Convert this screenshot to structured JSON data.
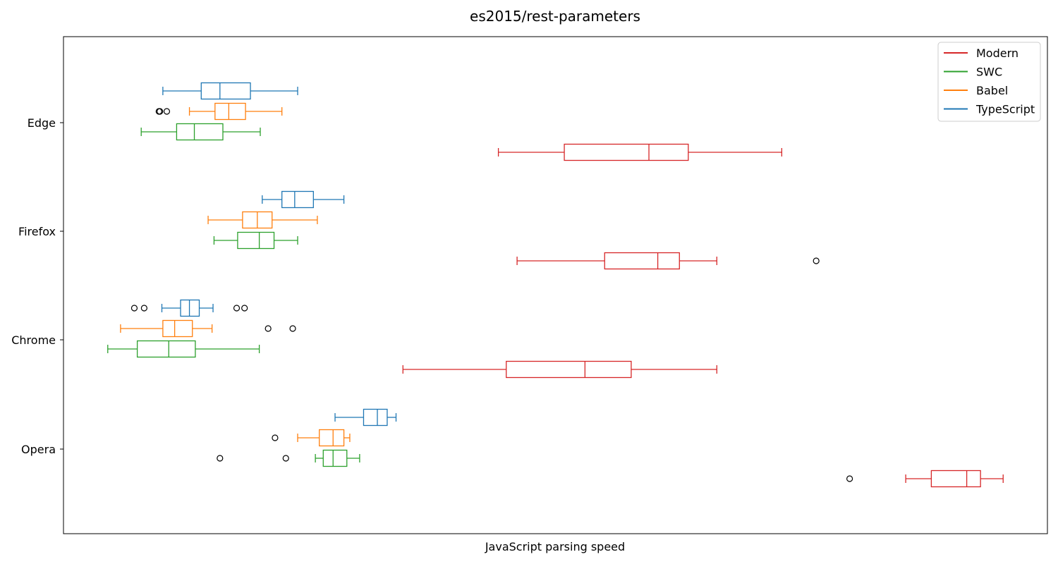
{
  "chart_data": {
    "type": "boxplot",
    "orientation": "horizontal",
    "title": "es2015/rest-parameters",
    "xlabel": "JavaScript parsing speed",
    "ylabel": "",
    "x_ticks_shown": false,
    "xlim": [
      0,
      1000
    ],
    "grid": false,
    "legend_position": "top-right",
    "categories": [
      "Edge",
      "Firefox",
      "Chrome",
      "Opera"
    ],
    "series": [
      {
        "name": "Modern",
        "color": "#d62728",
        "boxes": [
          {
            "category": "Edge",
            "whislo": 442,
            "q1": 509,
            "med": 595,
            "q3": 635,
            "whishi": 730,
            "fliers": []
          },
          {
            "category": "Firefox",
            "whislo": 461,
            "q1": 550,
            "med": 604,
            "q3": 626,
            "whishi": 664,
            "fliers": [
              765
            ]
          },
          {
            "category": "Chrome",
            "whislo": 345,
            "q1": 450,
            "med": 530,
            "q3": 577,
            "whishi": 664,
            "fliers": []
          },
          {
            "category": "Opera",
            "whislo": 856,
            "q1": 882,
            "med": 918,
            "q3": 932,
            "whishi": 955,
            "fliers": [
              799
            ]
          }
        ]
      },
      {
        "name": "SWC",
        "color": "#2ca02c",
        "boxes": [
          {
            "category": "Edge",
            "whislo": 79,
            "q1": 115,
            "med": 133,
            "q3": 162,
            "whishi": 200,
            "fliers": []
          },
          {
            "category": "Firefox",
            "whislo": 153,
            "q1": 177,
            "med": 199,
            "q3": 214,
            "whishi": 238,
            "fliers": []
          },
          {
            "category": "Chrome",
            "whislo": 45,
            "q1": 75,
            "med": 107,
            "q3": 134,
            "whishi": 199,
            "fliers": []
          },
          {
            "category": "Opera",
            "whislo": 256,
            "q1": 264,
            "med": 274,
            "q3": 288,
            "whishi": 301,
            "fliers": [
              159,
              226
            ]
          }
        ]
      },
      {
        "name": "Babel",
        "color": "#ff7f0e",
        "boxes": [
          {
            "category": "Edge",
            "whislo": 128,
            "q1": 154,
            "med": 168,
            "q3": 185,
            "whishi": 222,
            "fliers": [
              97,
              98,
              105
            ]
          },
          {
            "category": "Firefox",
            "whislo": 147,
            "q1": 182,
            "med": 197,
            "q3": 212,
            "whishi": 258,
            "fliers": []
          },
          {
            "category": "Chrome",
            "whislo": 58,
            "q1": 101,
            "med": 113,
            "q3": 131,
            "whishi": 151,
            "fliers": [
              208,
              233
            ]
          },
          {
            "category": "Opera",
            "whislo": 238,
            "q1": 260,
            "med": 274,
            "q3": 285,
            "whishi": 291,
            "fliers": [
              215
            ]
          }
        ]
      },
      {
        "name": "TypeScript",
        "color": "#1f77b4",
        "boxes": [
          {
            "category": "Edge",
            "whislo": 101,
            "q1": 140,
            "med": 159,
            "q3": 190,
            "whishi": 238,
            "fliers": []
          },
          {
            "category": "Firefox",
            "whislo": 202,
            "q1": 222,
            "med": 235,
            "q3": 254,
            "whishi": 285,
            "fliers": []
          },
          {
            "category": "Chrome",
            "whislo": 100,
            "q1": 119,
            "med": 128,
            "q3": 138,
            "whishi": 152,
            "fliers": [
              72,
              82,
              176,
              184
            ]
          },
          {
            "category": "Opera",
            "whislo": 276,
            "q1": 305,
            "med": 319,
            "q3": 329,
            "whishi": 338,
            "fliers": []
          }
        ]
      }
    ]
  }
}
